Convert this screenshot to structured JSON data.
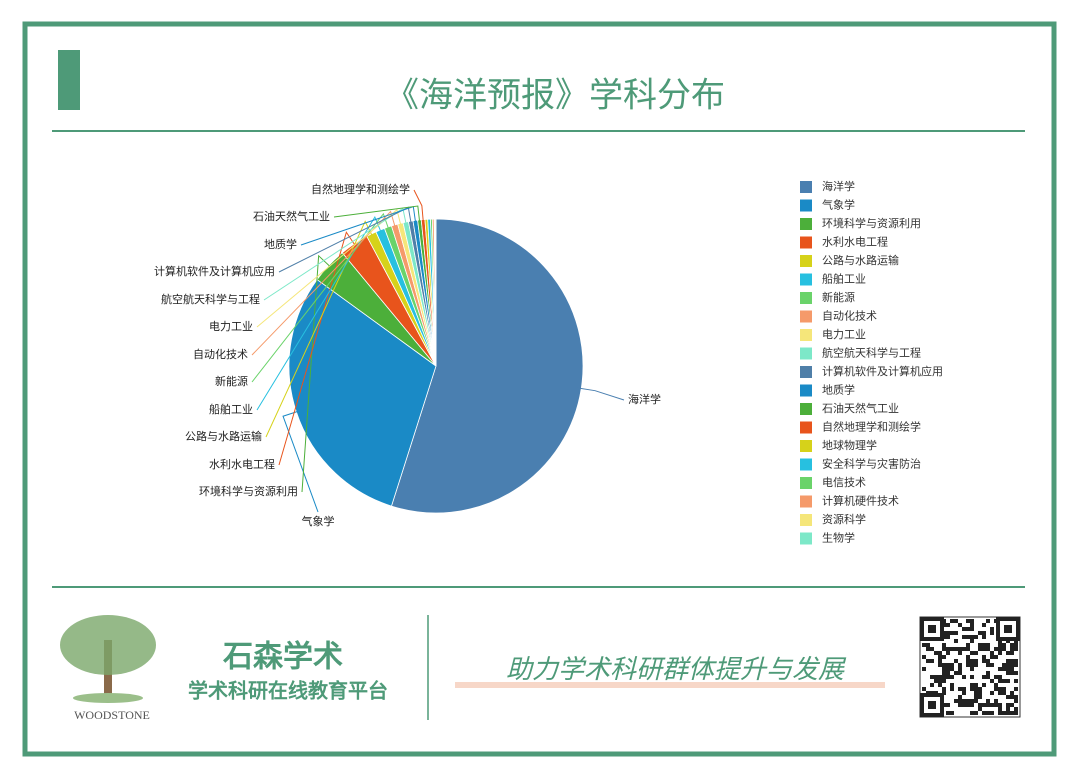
{
  "chart_data": {
    "type": "pie",
    "title": "《海洋预报》学科分布",
    "categories": [
      "海洋学",
      "气象学",
      "环境科学与资源利用",
      "水利水电工程",
      "公路与水路运输",
      "船舶工业",
      "新能源",
      "自动化技术",
      "电力工业",
      "航空航天科学与工程",
      "计算机软件及计算机应用",
      "地质学",
      "石油天然气工业",
      "自然地理学和测绘学",
      "地球物理学",
      "安全科学与灾害防治",
      "电信技术",
      "计算机硬件技术",
      "资源科学",
      "生物学"
    ],
    "values": [
      54.9,
      30.1,
      4.0,
      3.2,
      1.1,
      1.0,
      0.8,
      0.7,
      0.6,
      0.6,
      0.5,
      0.5,
      0.4,
      0.4,
      0.3,
      0.3,
      0.2,
      0.2,
      0.1,
      0.1
    ],
    "colors": [
      "#4a7fb0",
      "#1a8ac6",
      "#4caf3a",
      "#e8541c",
      "#d6d21a",
      "#27c0e0",
      "#6ad36a",
      "#f59a6a",
      "#f5e67a",
      "#7de8c8",
      "#4f7fa8",
      "#1a8ac6",
      "#4caf3a",
      "#e8541c",
      "#d6d21a",
      "#27c0e0",
      "#6ad36a",
      "#f59a6a",
      "#f5e67a",
      "#7de8c8"
    ],
    "legend": "right"
  },
  "footer": {
    "brand": "石森学术",
    "tagline": "学术科研在线教育平台",
    "slogan": "助力学术科研群体提升与发展",
    "logo_text": "WOODSTONE"
  }
}
